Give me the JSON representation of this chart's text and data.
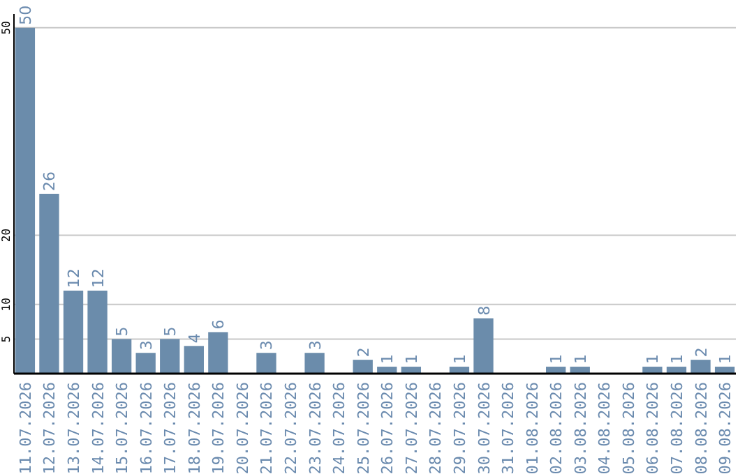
{
  "chart_data": {
    "type": "bar",
    "categories": [
      "11.07.2026",
      "12.07.2026",
      "13.07.2026",
      "14.07.2026",
      "15.07.2026",
      "16.07.2026",
      "17.07.2026",
      "18.07.2026",
      "19.07.2026",
      "20.07.2026",
      "21.07.2026",
      "22.07.2026",
      "23.07.2026",
      "24.07.2026",
      "25.07.2026",
      "26.07.2026",
      "27.07.2026",
      "28.07.2026",
      "29.07.2026",
      "30.07.2026",
      "31.07.2026",
      "01.08.2026",
      "02.08.2026",
      "03.08.2026",
      "04.08.2026",
      "05.08.2026",
      "06.08.2026",
      "07.08.2026",
      "08.08.2026",
      "09.08.2026"
    ],
    "values": [
      50,
      26,
      12,
      12,
      5,
      3,
      5,
      4,
      6,
      null,
      3,
      null,
      3,
      null,
      2,
      1,
      1,
      null,
      1,
      8,
      null,
      null,
      1,
      1,
      null,
      null,
      1,
      1,
      2,
      1
    ],
    "color": "#6b8cab",
    "ylim": [
      0,
      52
    ],
    "yticks": [
      5,
      10,
      20,
      50
    ],
    "grid": "y",
    "data_labels": true
  }
}
